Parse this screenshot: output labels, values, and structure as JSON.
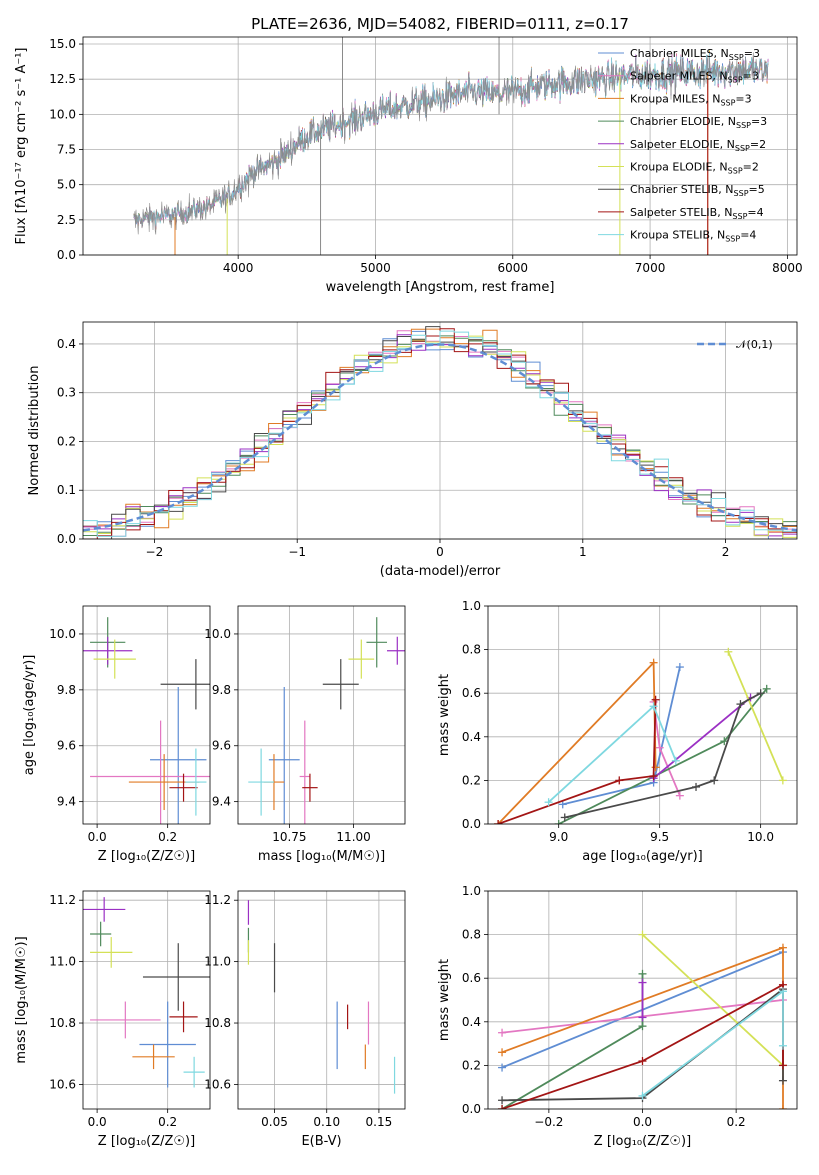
{
  "title": "PLATE=2636, MJD=54082, FIBERID=0111, z=0.17",
  "models": [
    {
      "name": "Chabrier MILES",
      "n": "3",
      "color": "#5f8dd3"
    },
    {
      "name": "Salpeter MILES",
      "n": "3",
      "color": "#e377c2"
    },
    {
      "name": "Kroupa MILES",
      "n": "3",
      "color": "#e07b25"
    },
    {
      "name": "Chabrier ELODIE",
      "n": "3",
      "color": "#4f8a5b"
    },
    {
      "name": "Salpeter ELODIE",
      "n": "2",
      "color": "#9b30c4"
    },
    {
      "name": "Kroupa ELODIE",
      "n": "2",
      "color": "#d4e157"
    },
    {
      "name": "Chabrier STELIB",
      "n": "5",
      "color": "#4a4a4a"
    },
    {
      "name": "Salpeter STELIB",
      "n": "4",
      "color": "#a31515"
    },
    {
      "name": "Kroupa STELIB",
      "n": "4",
      "color": "#7fd8e0"
    }
  ],
  "chart_data": [
    {
      "id": "spectrum",
      "type": "line",
      "xlabel": "wavelength [Angstrom, rest frame]",
      "ylabel": "Flux [fλ10⁻¹⁷ erg cm⁻² s⁻¹ A⁻¹]",
      "xlim": [
        2870,
        8070
      ],
      "ylim": [
        0,
        15.5
      ],
      "xticks": [
        4000,
        5000,
        6000,
        7000,
        8000
      ],
      "yticks": [
        0.0,
        2.5,
        5.0,
        7.5,
        10.0,
        12.5,
        15.0
      ],
      "ytick_labels": [
        "0.0",
        "2.5",
        "5.0",
        "7.5",
        "10.0",
        "12.5",
        "15.0"
      ],
      "legend_placement": "upper-right",
      "data_anchor_x": [
        3250,
        3400,
        3600,
        3800,
        3950,
        4100,
        4300,
        4500,
        4700,
        4900,
        5100,
        5300,
        5500,
        5700,
        5900,
        6100,
        6300,
        6500,
        6700,
        6900,
        7100,
        7300,
        7500,
        7700,
        7850
      ],
      "data_anchor_y": [
        2.5,
        2.7,
        3.0,
        3.5,
        4.3,
        5.8,
        6.8,
        8.5,
        9.2,
        9.8,
        10.4,
        10.8,
        11.2,
        11.6,
        11.4,
        11.8,
        12.2,
        12.4,
        12.6,
        12.8,
        12.9,
        13.0,
        13.1,
        13.2,
        13.0
      ]
    },
    {
      "id": "residuals",
      "type": "histogram",
      "xlabel": "(data-model)/error",
      "ylabel": "Normed distribution",
      "xlim": [
        -2.5,
        2.5
      ],
      "ylim": [
        0,
        0.445
      ],
      "xticks": [
        -2,
        -1,
        0,
        1,
        2
      ],
      "xtick_labels": [
        "−2",
        "−1",
        "0",
        "1",
        "2"
      ],
      "yticks": [
        0.0,
        0.1,
        0.2,
        0.3,
        0.4
      ],
      "ytick_labels": [
        "0.0",
        "0.1",
        "0.2",
        "0.3",
        "0.4"
      ],
      "reference_curve": "𝒩(0,1)",
      "reference_mean": 0.0,
      "reference_sigma": 1.0,
      "legend_placement": "upper-right",
      "bin_width": 0.1
    },
    {
      "id": "age-vs-Z",
      "type": "scatter",
      "xlabel": "Z [log₁₀(Z/Z☉)]",
      "ylabel": "age  [log₁₀(age/yr)]",
      "xlim": [
        -0.04,
        0.32
      ],
      "ylim": [
        9.32,
        10.1
      ],
      "xticks": [
        0.0,
        0.2
      ],
      "xtick_labels": [
        "0.0",
        "0.2"
      ],
      "yticks": [
        9.4,
        9.6,
        9.8,
        10.0
      ],
      "ytick_labels": [
        "9.4",
        "9.6",
        "9.8",
        "10.0"
      ],
      "points": [
        {
          "model": 0,
          "x": 0.23,
          "xerr": 0.08,
          "y": 9.55,
          "yerr": 0.26
        },
        {
          "model": 1,
          "x": 0.18,
          "xerr": 0.2,
          "y": 9.49,
          "yerr": 0.2
        },
        {
          "model": 2,
          "x": 0.19,
          "xerr": 0.1,
          "y": 9.47,
          "yerr": 0.1
        },
        {
          "model": 3,
          "x": 0.03,
          "xerr": 0.05,
          "y": 9.97,
          "yerr": 0.09
        },
        {
          "model": 4,
          "x": 0.03,
          "xerr": 0.07,
          "y": 9.94,
          "yerr": 0.05
        },
        {
          "model": 5,
          "x": 0.05,
          "xerr": 0.06,
          "y": 9.91,
          "yerr": 0.07
        },
        {
          "model": 6,
          "x": 0.28,
          "xerr": 0.1,
          "y": 9.82,
          "yerr": 0.09
        },
        {
          "model": 7,
          "x": 0.245,
          "xerr": 0.04,
          "y": 9.45,
          "yerr": 0.05
        },
        {
          "model": 8,
          "x": 0.28,
          "xerr": 0.03,
          "y": 9.47,
          "yerr": 0.12
        }
      ]
    },
    {
      "id": "age-vs-mass",
      "type": "scatter",
      "xlabel": "mass [log₁₀(M/M☉)]",
      "ylabel": "",
      "xlim": [
        10.55,
        11.2
      ],
      "ylim": [
        9.32,
        10.1
      ],
      "xticks": [
        10.75,
        11.0
      ],
      "xtick_labels": [
        "10.75",
        "11.00"
      ],
      "yticks": [
        9.4,
        9.6,
        9.8,
        10.0
      ],
      "ytick_labels": [
        "9.4",
        "9.6",
        "9.8",
        "10.0"
      ],
      "points": [
        {
          "model": 0,
          "x": 10.73,
          "xerr": 0.06,
          "y": 9.55,
          "yerr": 0.26
        },
        {
          "model": 1,
          "x": 10.81,
          "xerr": 0.02,
          "y": 9.49,
          "yerr": 0.2
        },
        {
          "model": 2,
          "x": 10.69,
          "xerr": 0.04,
          "y": 9.47,
          "yerr": 0.1
        },
        {
          "model": 3,
          "x": 11.09,
          "xerr": 0.04,
          "y": 9.97,
          "yerr": 0.09
        },
        {
          "model": 4,
          "x": 11.17,
          "xerr": 0.04,
          "y": 9.94,
          "yerr": 0.05
        },
        {
          "model": 5,
          "x": 11.03,
          "xerr": 0.05,
          "y": 9.91,
          "yerr": 0.07
        },
        {
          "model": 6,
          "x": 10.95,
          "xerr": 0.07,
          "y": 9.82,
          "yerr": 0.09
        },
        {
          "model": 7,
          "x": 10.83,
          "xerr": 0.03,
          "y": 9.45,
          "yerr": 0.05
        },
        {
          "model": 8,
          "x": 10.64,
          "xerr": 0.05,
          "y": 9.47,
          "yerr": 0.12
        }
      ]
    },
    {
      "id": "weight-vs-age",
      "type": "line",
      "xlabel": "age  [log₁₀(age/yr)]",
      "ylabel": "mass weight",
      "xlim": [
        8.65,
        10.18
      ],
      "ylim": [
        0,
        1
      ],
      "xticks": [
        9.0,
        9.5,
        10.0
      ],
      "xtick_labels": [
        "9.0",
        "9.5",
        "10.0"
      ],
      "yticks": [
        0.0,
        0.2,
        0.4,
        0.6,
        0.8,
        1.0
      ],
      "ytick_labels": [
        "0.0",
        "0.2",
        "0.4",
        "0.6",
        "0.8",
        "1.0"
      ],
      "series": [
        {
          "model": 0,
          "x": [
            9.02,
            9.47,
            9.6
          ],
          "y": [
            0.09,
            0.19,
            0.72
          ]
        },
        {
          "model": 1,
          "x": [
            9.47,
            9.5,
            9.6
          ],
          "y": [
            0.56,
            0.35,
            0.13
          ]
        },
        {
          "model": 2,
          "x": [
            8.7,
            9.47,
            9.48
          ],
          "y": [
            0.0,
            0.74,
            0.26
          ]
        },
        {
          "model": 3,
          "x": [
            9.0,
            9.82,
            10.03
          ],
          "y": [
            0.0,
            0.38,
            0.62
          ]
        },
        {
          "model": 4,
          "x": [
            9.47,
            9.95
          ],
          "y": [
            0.21,
            0.58
          ]
        },
        {
          "model": 5,
          "x": [
            9.84,
            10.11
          ],
          "y": [
            0.79,
            0.2
          ]
        },
        {
          "model": 6,
          "x": [
            9.03,
            9.68,
            9.77,
            9.9,
            10.0
          ],
          "y": [
            0.03,
            0.17,
            0.2,
            0.55,
            0.6
          ]
        },
        {
          "model": 7,
          "x": [
            8.7,
            9.3,
            9.47,
            9.48
          ],
          "y": [
            0.0,
            0.2,
            0.22,
            0.57
          ]
        },
        {
          "model": 8,
          "x": [
            8.95,
            9.47,
            9.58
          ],
          "y": [
            0.1,
            0.54,
            0.29
          ]
        }
      ]
    },
    {
      "id": "mass-vs-Z",
      "type": "scatter",
      "xlabel": "Z [log₁₀(Z/Z☉)]",
      "ylabel": "mass [log₁₀(M/M☉)]",
      "xlim": [
        -0.04,
        0.32
      ],
      "ylim": [
        10.52,
        11.23
      ],
      "xticks": [
        0.0,
        0.2
      ],
      "xtick_labels": [
        "0.0",
        "0.2"
      ],
      "yticks": [
        10.6,
        10.8,
        11.0,
        11.2
      ],
      "ytick_labels": [
        "10.6",
        "10.8",
        "11.0",
        "11.2"
      ],
      "points": [
        {
          "model": 0,
          "x": 0.2,
          "xerr": 0.08,
          "y": 10.73,
          "yerr": 0.14
        },
        {
          "model": 1,
          "x": 0.08,
          "xerr": 0.1,
          "y": 10.81,
          "yerr": 0.06
        },
        {
          "model": 2,
          "x": 0.16,
          "xerr": 0.06,
          "y": 10.69,
          "yerr": 0.04
        },
        {
          "model": 3,
          "x": 0.01,
          "xerr": 0.03,
          "y": 11.09,
          "yerr": 0.04
        },
        {
          "model": 4,
          "x": 0.02,
          "xerr": 0.06,
          "y": 11.17,
          "yerr": 0.04
        },
        {
          "model": 5,
          "x": 0.04,
          "xerr": 0.06,
          "y": 11.03,
          "yerr": 0.05
        },
        {
          "model": 6,
          "x": 0.23,
          "xerr": 0.1,
          "y": 10.95,
          "yerr": 0.11
        },
        {
          "model": 7,
          "x": 0.245,
          "xerr": 0.04,
          "y": 10.82,
          "yerr": 0.05
        },
        {
          "model": 8,
          "x": 0.275,
          "xerr": 0.03,
          "y": 10.64,
          "yerr": 0.05
        }
      ]
    },
    {
      "id": "mass-vs-ebv",
      "type": "scatter",
      "xlabel": "E(B-V)",
      "ylabel": "",
      "xlim": [
        0.015,
        0.175
      ],
      "ylim": [
        10.52,
        11.23
      ],
      "xticks": [
        0.05,
        0.1,
        0.15
      ],
      "xtick_labels": [
        "0.05",
        "0.10",
        "0.15"
      ],
      "yticks": [
        10.6,
        10.8,
        11.0,
        11.2
      ],
      "ytick_labels": [
        "10.6",
        "10.8",
        "11.0",
        "11.2"
      ],
      "points": [
        {
          "model": 0,
          "x": 0.11,
          "y": 10.76,
          "yerr": 0.11
        },
        {
          "model": 1,
          "x": 0.14,
          "y": 10.8,
          "yerr": 0.07
        },
        {
          "model": 2,
          "x": 0.137,
          "y": 10.69,
          "yerr": 0.04
        },
        {
          "model": 3,
          "x": 0.025,
          "y": 11.07,
          "yerr": 0.04
        },
        {
          "model": 4,
          "x": 0.025,
          "y": 11.16,
          "yerr": 0.04
        },
        {
          "model": 5,
          "x": 0.025,
          "y": 11.03,
          "yerr": 0.04
        },
        {
          "model": 6,
          "x": 0.05,
          "y": 10.98,
          "yerr": 0.08
        },
        {
          "model": 7,
          "x": 0.12,
          "y": 10.82,
          "yerr": 0.04
        },
        {
          "model": 8,
          "x": 0.165,
          "y": 10.63,
          "yerr": 0.06
        }
      ]
    },
    {
      "id": "weight-vs-Z",
      "type": "line",
      "xlabel": "Z [log₁₀(Z/Z☉)]",
      "ylabel": "mass weight",
      "xlim": [
        -0.33,
        0.33
      ],
      "ylim": [
        0,
        1
      ],
      "xticks": [
        -0.2,
        0.0,
        0.2
      ],
      "xtick_labels": [
        "−0.2",
        "0.0",
        "0.2"
      ],
      "yticks": [
        0.0,
        0.2,
        0.4,
        0.6,
        0.8,
        1.0
      ],
      "ytick_labels": [
        "0.0",
        "0.2",
        "0.4",
        "0.6",
        "0.8",
        "1.0"
      ],
      "series": [
        {
          "model": 0,
          "x": [
            -0.3,
            0.3
          ],
          "y": [
            0.19,
            0.72
          ]
        },
        {
          "model": 1,
          "x": [
            -0.3,
            0.3
          ],
          "y": [
            0.35,
            0.5
          ]
        },
        {
          "model": 2,
          "x": [
            -0.3,
            0.3,
            0.3
          ],
          "y": [
            0.26,
            0.74,
            0.0
          ]
        },
        {
          "model": 3,
          "x": [
            -0.3,
            0.0,
            0.0
          ],
          "y": [
            0.0,
            0.38,
            0.62
          ]
        },
        {
          "model": 4,
          "x": [
            0.0,
            0.0
          ],
          "y": [
            0.42,
            0.58
          ]
        },
        {
          "model": 5,
          "x": [
            0.0,
            0.3
          ],
          "y": [
            0.8,
            0.2
          ]
        },
        {
          "model": 6,
          "x": [
            -0.3,
            0.0,
            0.3,
            0.3
          ],
          "y": [
            0.04,
            0.05,
            0.55,
            0.13
          ]
        },
        {
          "model": 7,
          "x": [
            -0.3,
            0.0,
            0.3,
            0.3
          ],
          "y": [
            0.0,
            0.22,
            0.57,
            0.2
          ]
        },
        {
          "model": 8,
          "x": [
            0.0,
            0.3,
            0.3
          ],
          "y": [
            0.06,
            0.54,
            0.29
          ]
        }
      ]
    }
  ]
}
